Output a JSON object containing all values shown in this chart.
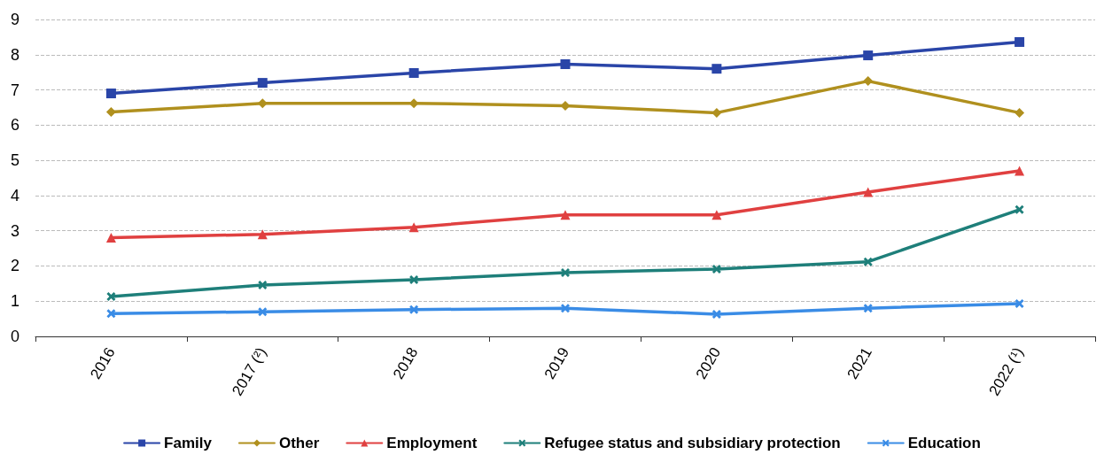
{
  "chart_data": {
    "type": "line",
    "categories": [
      "2016",
      "2017 (²)",
      "2018",
      "2019",
      "2020",
      "2021",
      "2022 (¹)"
    ],
    "series": [
      {
        "name": "Family",
        "color": "#2a45a8",
        "marker": "square",
        "values": [
          6.9,
          7.2,
          7.48,
          7.73,
          7.6,
          7.98,
          8.36
        ]
      },
      {
        "name": "Other",
        "color": "#b0901e",
        "marker": "diamond",
        "values": [
          6.37,
          6.62,
          6.62,
          6.55,
          6.35,
          7.25,
          6.35
        ]
      },
      {
        "name": "Employment",
        "color": "#e04040",
        "marker": "triangle",
        "values": [
          2.8,
          2.9,
          3.1,
          3.45,
          3.45,
          4.1,
          4.7
        ]
      },
      {
        "name": "Refugee status and subsidiary protection",
        "color": "#1e7f7a",
        "marker": "cross",
        "values": [
          1.13,
          1.46,
          1.61,
          1.81,
          1.91,
          2.12,
          3.6
        ]
      },
      {
        "name": "Education",
        "color": "#3a8ce6",
        "marker": "cross",
        "values": [
          0.65,
          0.7,
          0.76,
          0.8,
          0.63,
          0.8,
          0.93
        ]
      }
    ],
    "ylim": [
      0,
      9
    ],
    "yticks": [
      0,
      1,
      2,
      3,
      4,
      5,
      6,
      7,
      8,
      9
    ],
    "grid": "y",
    "legend": "bottom",
    "line_style": "solid"
  }
}
